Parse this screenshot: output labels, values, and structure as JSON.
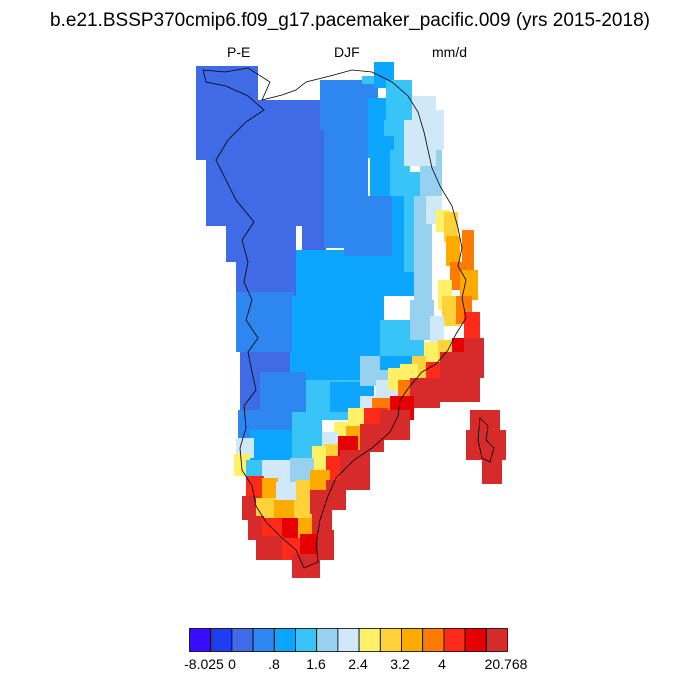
{
  "title": "b.e21.BSSP370cmip6.f09_g17.pacemaker_pacific.009 (yrs 2015-2018)",
  "subtitle": {
    "left": "P-E",
    "center": "DJF",
    "right": "mm/d"
  },
  "colorbar": {
    "colors": [
      "#3a0cff",
      "#1f3cf0",
      "#3f6be6",
      "#2e86f0",
      "#0ca6ff",
      "#38c4f6",
      "#96d2f0",
      "#cfe9f8",
      "#fff066",
      "#ffd23a",
      "#ffaa00",
      "#ff7a00",
      "#ff2a1a",
      "#e60000",
      "#d72b2b"
    ],
    "tick_labels": [
      "-8.025",
      "0",
      ".8",
      "1.6",
      "2.4",
      "3.2",
      "4",
      "20.768"
    ]
  },
  "map": {
    "region": "Greenland",
    "colors": {
      "deep_blue": "#3f6be6",
      "mid_blue": "#2e86f0",
      "light_blue": "#0ca6ff",
      "sky": "#38c4f6",
      "pale": "#96d2f0",
      "palest": "#cfe9f8",
      "yellow": "#fff066",
      "gold": "#ffd23a",
      "orange": "#ffaa00",
      "dark_orange": "#ff7a00",
      "red": "#ff2a1a",
      "crimson": "#e60000",
      "dark_red": "#d72b2b"
    }
  }
}
